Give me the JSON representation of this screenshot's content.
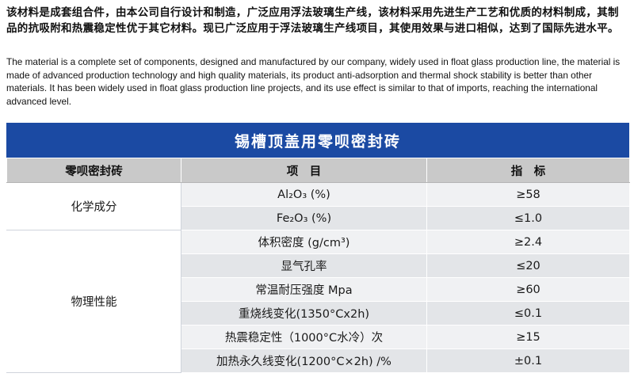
{
  "intro": {
    "chinese": "该材料是成套组合件，由本公司自行设计和制造，广泛应用浮法玻璃生产线，该材料采用先进生产工艺和优质的材料制成，其制品的抗吸附和热震稳定性优于其它材料。现已广泛应用于浮法玻璃生产线项目，其使用效果与进口相似，达到了国际先进水平。",
    "english": "The material is a complete set of components, designed and manufactured by our company, widely used in float glass production line, the material is made of advanced production technology and high quality materials, its product anti-adsorption and thermal shock stability is better than other materials. It has been widely used in float glass production line projects, and its use effect is similar to that of imports, reaching the international advanced level."
  },
  "table": {
    "title": "锡槽顶盖用零呗密封砖",
    "headers": [
      "零呗密封砖",
      "项　目",
      "指　标"
    ],
    "groups": [
      {
        "category": "化学成分",
        "rows": [
          {
            "item": "Al₂O₃ (%)",
            "value": "≥58"
          },
          {
            "item": "Fe₂O₃ (%)",
            "value": "≤1.0"
          }
        ]
      },
      {
        "category": "物理性能",
        "rows": [
          {
            "item": "体积密度 (g/cm³)",
            "value": "≥2.4"
          },
          {
            "item": "显气孔率",
            "value": "≤20"
          },
          {
            "item": "常温耐压强度 Mpa",
            "value": "≥60"
          },
          {
            "item": "重烧线变化(1350°Cx2h)",
            "value": "≤0.1"
          },
          {
            "item": "热震稳定性（1000°C水冷）次",
            "value": "≥15"
          },
          {
            "item": "加热永久线变化(1200°C×2h) /%",
            "value": "±0.1"
          }
        ]
      }
    ]
  },
  "colors": {
    "title_bar": "#1b4aa3",
    "header_row": "#c9c9c9",
    "row_light": "#f0f1f3",
    "row_dark": "#e3e5e8"
  }
}
